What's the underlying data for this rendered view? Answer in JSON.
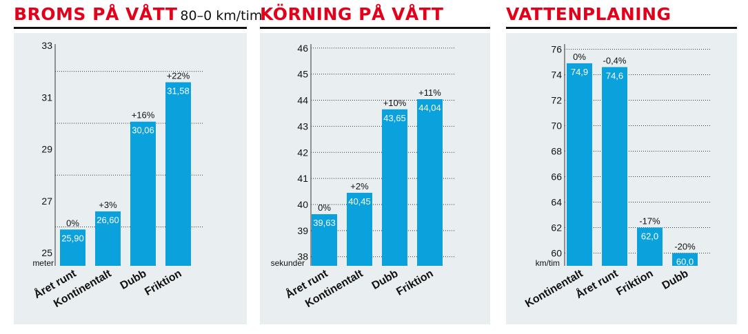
{
  "colors": {
    "title": "#e3001b",
    "bar": "#0aa1dc",
    "background": "#e9eef0",
    "rule": "#111111"
  },
  "chart_data": [
    {
      "type": "bar",
      "title": "BROMS PÅ VÅTT",
      "subtitle": "80–0 km/tim",
      "ylabel": "meter",
      "ylim": [
        24.5,
        33
      ],
      "y_ticks": [
        25,
        27,
        29,
        31,
        33
      ],
      "y_tick_labels": [
        "25",
        "27",
        "29",
        "31",
        "33"
      ],
      "gridlines": [
        26,
        28,
        30,
        32
      ],
      "categories": [
        "Året runt",
        "Kontinentalt",
        "Dubb",
        "Friktion"
      ],
      "values": [
        25.9,
        26.6,
        30.06,
        31.58
      ],
      "value_labels": [
        "25,90",
        "26,60",
        "30,06",
        "31,58"
      ],
      "percent_labels": [
        "0%",
        "+3%",
        "+16%",
        "+22%"
      ]
    },
    {
      "type": "bar",
      "title": "KÖRNING PÅ VÅTT",
      "subtitle": "",
      "ylabel": "sekunder",
      "ylim": [
        37.65,
        46.1
      ],
      "y_ticks": [
        38,
        39,
        40,
        41,
        42,
        43,
        44,
        45,
        46
      ],
      "y_tick_labels": [
        "38",
        "39",
        "40",
        "41",
        "42",
        "43",
        "44",
        "45",
        "46"
      ],
      "gridlines": [
        38,
        39,
        40,
        41,
        42,
        43,
        44,
        45,
        46
      ],
      "categories": [
        "Året runt",
        "Kontinentalt",
        "Dubb",
        "Friktion"
      ],
      "values": [
        39.63,
        40.45,
        43.65,
        44.04
      ],
      "value_labels": [
        "39,63",
        "40,45",
        "43,65",
        "44,04"
      ],
      "percent_labels": [
        "0%",
        "+2%",
        "+10%",
        "+11%"
      ]
    },
    {
      "type": "bar",
      "title": "VATTENPLANING",
      "subtitle": "",
      "ylabel": "km/tim",
      "ylim": [
        59,
        76.3
      ],
      "y_ticks": [
        60,
        62,
        64,
        66,
        68,
        70,
        72,
        74,
        76
      ],
      "y_tick_labels": [
        "60",
        "62",
        "64",
        "66",
        "68",
        "70",
        "72",
        "74",
        "76"
      ],
      "gridlines": [
        60,
        62,
        64,
        66,
        68,
        70,
        72,
        74,
        76
      ],
      "categories": [
        "Kontinentalt",
        "Året runt",
        "Friktion",
        "Dubb"
      ],
      "values": [
        74.9,
        74.6,
        62.0,
        60.0
      ],
      "value_labels": [
        "74,9",
        "74,6",
        "62,0",
        "60,0"
      ],
      "percent_labels": [
        "0%",
        "-0,4%",
        "-17%",
        "-20%"
      ]
    }
  ]
}
